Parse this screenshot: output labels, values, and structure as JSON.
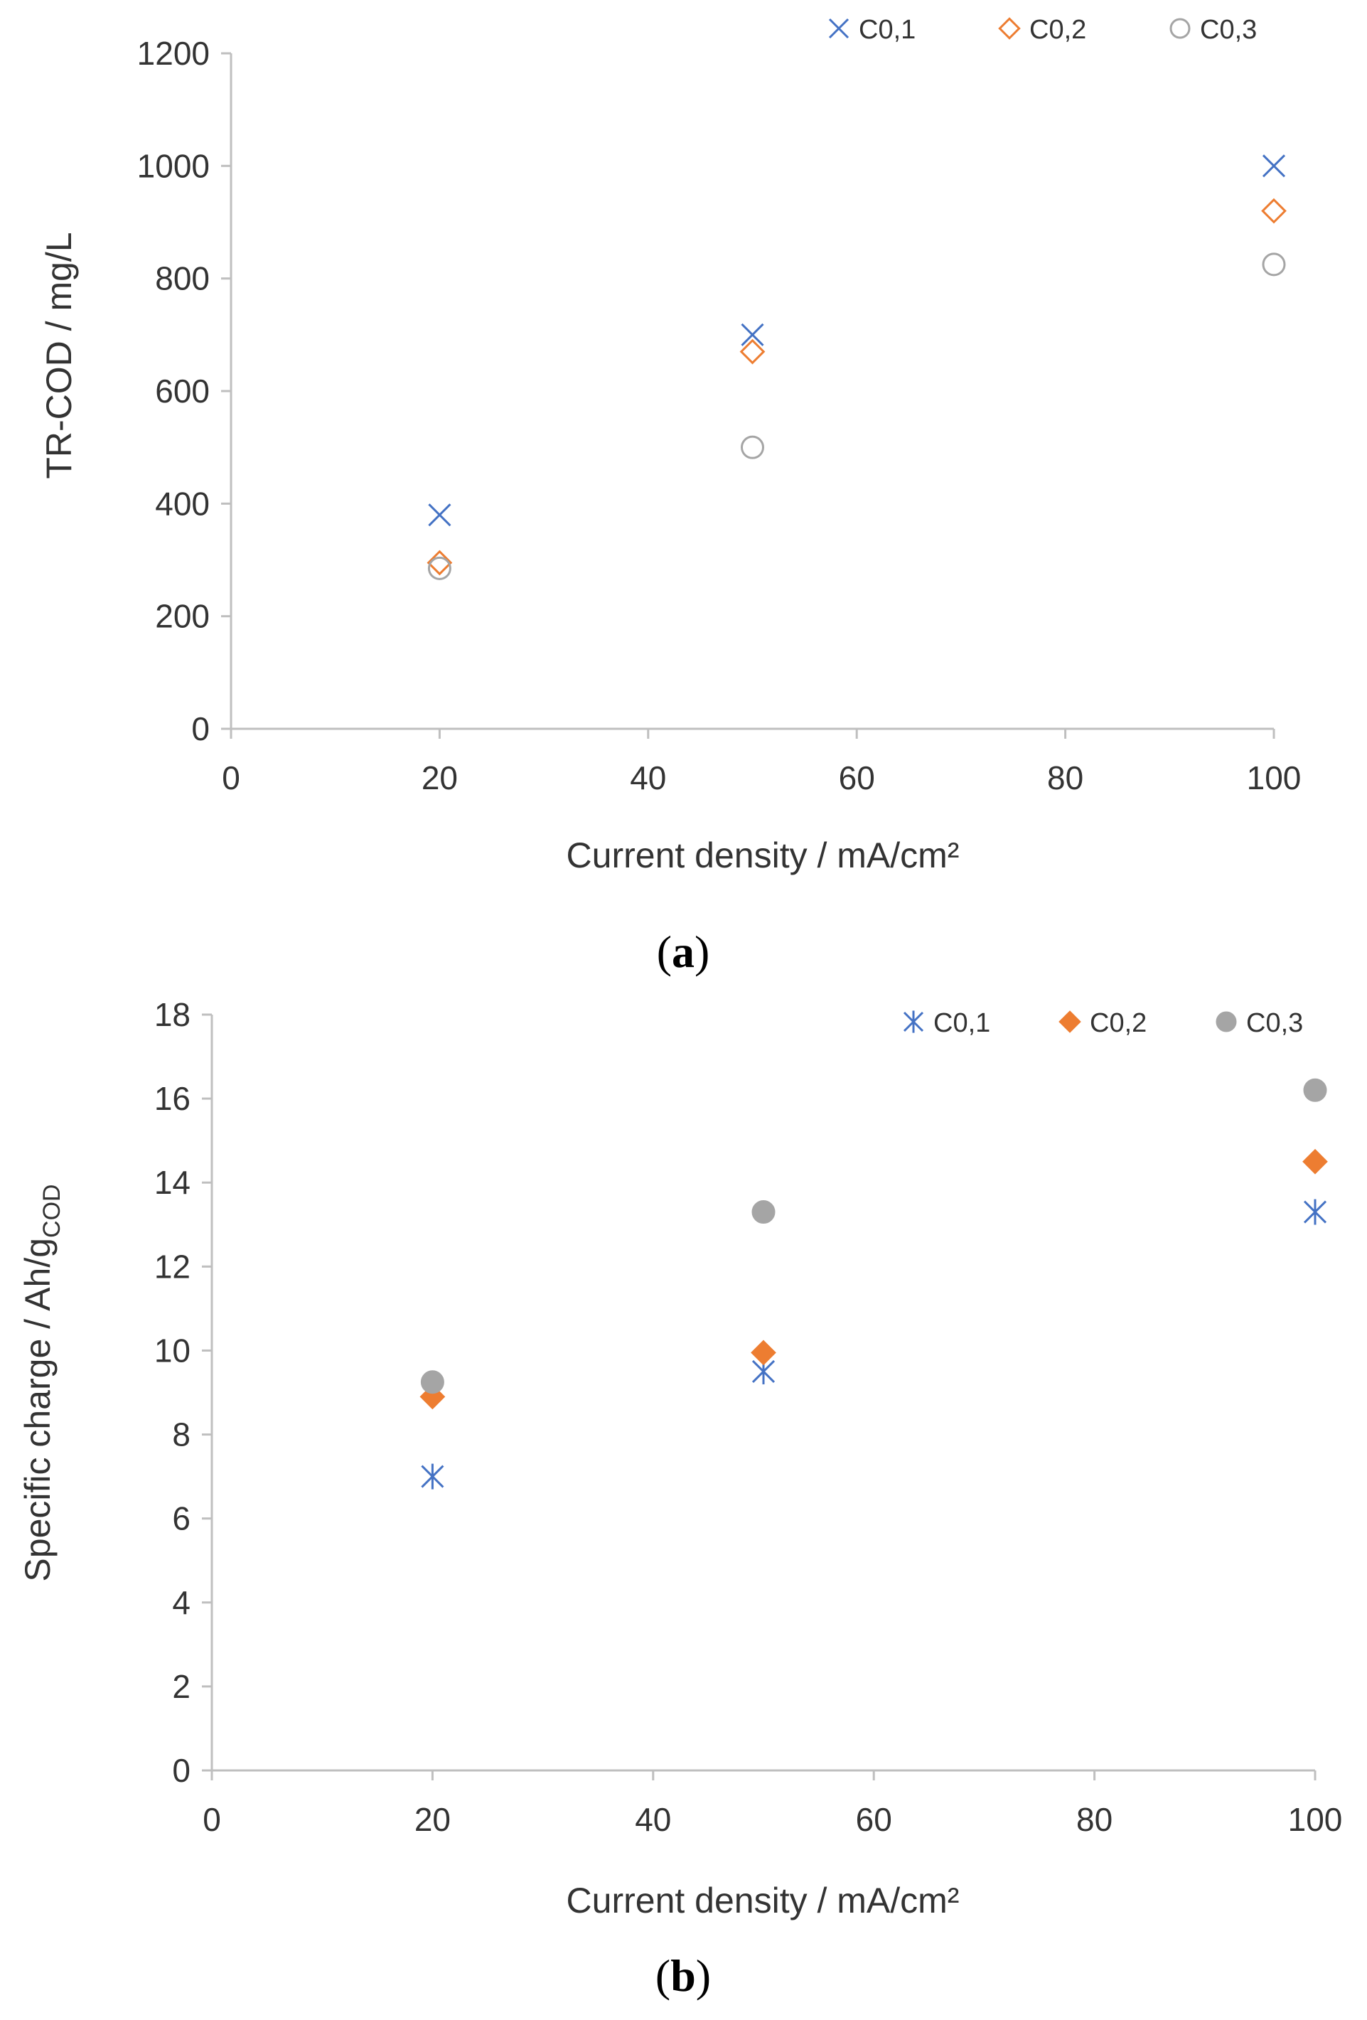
{
  "chart_data": [
    {
      "type": "scatter",
      "panel": "a",
      "panel_label": "a",
      "title": "",
      "xlabel": "Current density / mA/cm²",
      "ylabel": "TR-COD / mg/L",
      "ylabel_sub": "",
      "xlim": [
        0,
        100
      ],
      "ylim": [
        0,
        1200
      ],
      "xticks": [
        "0",
        "20",
        "40",
        "60",
        "80",
        "100"
      ],
      "yticks": [
        "0",
        "200",
        "400",
        "600",
        "800",
        "1000",
        "1200"
      ],
      "legend_position": "top-right",
      "series": [
        {
          "name": "C0,1",
          "marker": "x",
          "filled": false,
          "color": "#4472c4",
          "points": [
            [
              20,
              380
            ],
            [
              50,
              700
            ],
            [
              100,
              1000
            ]
          ]
        },
        {
          "name": "C0,2",
          "marker": "diamond",
          "filled": false,
          "color": "#ed7d31",
          "points": [
            [
              20,
              295
            ],
            [
              50,
              670
            ],
            [
              100,
              920
            ]
          ]
        },
        {
          "name": "C0,3",
          "marker": "circle",
          "filled": false,
          "color": "#a5a5a5",
          "points": [
            [
              20,
              285
            ],
            [
              50,
              500
            ],
            [
              100,
              825
            ]
          ]
        }
      ]
    },
    {
      "type": "scatter",
      "panel": "b",
      "panel_label": "b",
      "title": "",
      "xlabel": "Current density / mA/cm²",
      "ylabel": "Specific charge / Ah/g",
      "ylabel_sub": "COD",
      "xlim": [
        0,
        100
      ],
      "ylim": [
        0,
        18
      ],
      "xticks": [
        "0",
        "20",
        "40",
        "60",
        "80",
        "100"
      ],
      "yticks": [
        "0",
        "2",
        "4",
        "6",
        "8",
        "10",
        "12",
        "14",
        "16",
        "18"
      ],
      "legend_position": "top-right",
      "series": [
        {
          "name": "C0,1",
          "marker": "star",
          "filled": false,
          "color": "#4472c4",
          "points": [
            [
              20,
              7.0
            ],
            [
              50,
              9.5
            ],
            [
              100,
              13.3
            ]
          ]
        },
        {
          "name": "C0,2",
          "marker": "diamond",
          "filled": true,
          "color": "#ed7d31",
          "points": [
            [
              20,
              8.9
            ],
            [
              50,
              9.95
            ],
            [
              100,
              14.5
            ]
          ]
        },
        {
          "name": "C0,3",
          "marker": "circle",
          "filled": true,
          "color": "#a5a5a5",
          "points": [
            [
              20,
              9.25
            ],
            [
              50,
              13.3
            ],
            [
              100,
              16.2
            ]
          ]
        }
      ]
    }
  ]
}
